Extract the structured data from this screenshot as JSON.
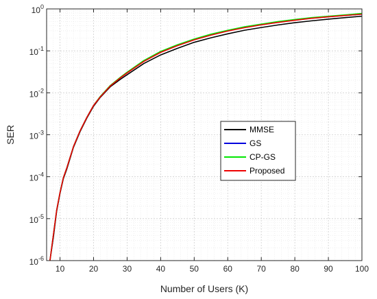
{
  "chart_data": {
    "type": "line",
    "xlabel": "Number of Users (K)",
    "ylabel": "SER",
    "xlim": [
      6,
      100
    ],
    "ylim": [
      1e-06,
      1
    ],
    "yscale": "log",
    "grid": true,
    "legend_position": "center-right",
    "x_ticks": [
      "10",
      "20",
      "30",
      "40",
      "50",
      "60",
      "70",
      "80",
      "90",
      "100"
    ],
    "y_ticks": [
      {
        "base": "10",
        "exp": "0"
      },
      {
        "base": "10",
        "exp": "-1"
      },
      {
        "base": "10",
        "exp": "-2"
      },
      {
        "base": "10",
        "exp": "-3"
      },
      {
        "base": "10",
        "exp": "-4"
      },
      {
        "base": "10",
        "exp": "-5"
      },
      {
        "base": "10",
        "exp": "-6"
      }
    ],
    "series": [
      {
        "name": "MMSE",
        "color": "#000000",
        "x": [
          7,
          8,
          9,
          10,
          11,
          12,
          14,
          16,
          18,
          20,
          22,
          25,
          28,
          30,
          35,
          40,
          45,
          50,
          55,
          60,
          65,
          70,
          75,
          80,
          85,
          90,
          95,
          100
        ],
        "y": [
          1e-06,
          3.5e-06,
          1.5e-05,
          4e-05,
          9e-05,
          0.00015,
          0.0005,
          0.0012,
          0.0025,
          0.0048,
          0.0078,
          0.014,
          0.021,
          0.027,
          0.05,
          0.08,
          0.115,
          0.16,
          0.205,
          0.255,
          0.31,
          0.36,
          0.415,
          0.47,
          0.52,
          0.57,
          0.62,
          0.67
        ]
      },
      {
        "name": "GS",
        "color": "#0000dd",
        "x": [
          7,
          8,
          9,
          10,
          11,
          12,
          14,
          16,
          18,
          20,
          22,
          25,
          28,
          30,
          35,
          40,
          45,
          50,
          55,
          60,
          65,
          70,
          75,
          80,
          85,
          90,
          95,
          100
        ],
        "y": [
          1e-06,
          4e-06,
          1.6e-05,
          4.2e-05,
          9.5e-05,
          0.00016,
          0.00052,
          0.00125,
          0.0026,
          0.005,
          0.0081,
          0.0148,
          0.023,
          0.03,
          0.057,
          0.093,
          0.135,
          0.185,
          0.24,
          0.3,
          0.36,
          0.42,
          0.48,
          0.54,
          0.6,
          0.65,
          0.7,
          0.75
        ]
      },
      {
        "name": "CP-GS",
        "color": "#00e600",
        "x": [
          7,
          8,
          9,
          10,
          11,
          12,
          14,
          16,
          18,
          20,
          22,
          25,
          28,
          30,
          35,
          40,
          45,
          50,
          55,
          60,
          65,
          70,
          75,
          80,
          85,
          90,
          95,
          100
        ],
        "y": [
          1e-06,
          4e-06,
          1.6e-05,
          4.2e-05,
          9.5e-05,
          0.00016,
          0.00052,
          0.00125,
          0.0026,
          0.005,
          0.0082,
          0.015,
          0.0235,
          0.031,
          0.059,
          0.097,
          0.14,
          0.192,
          0.25,
          0.31,
          0.375,
          0.435,
          0.5,
          0.56,
          0.62,
          0.67,
          0.72,
          0.78
        ]
      },
      {
        "name": "Proposed",
        "color": "#ee0000",
        "x": [
          7,
          8,
          9,
          10,
          11,
          12,
          14,
          16,
          18,
          20,
          22,
          25,
          28,
          30,
          35,
          40,
          45,
          50,
          55,
          60,
          65,
          70,
          75,
          80,
          85,
          90,
          95,
          100
        ],
        "y": [
          1e-06,
          4e-06,
          1.6e-05,
          4.2e-05,
          9.5e-05,
          0.00016,
          0.00052,
          0.00125,
          0.0026,
          0.005,
          0.008,
          0.0146,
          0.0228,
          0.0298,
          0.056,
          0.092,
          0.133,
          0.183,
          0.237,
          0.297,
          0.357,
          0.417,
          0.477,
          0.537,
          0.597,
          0.647,
          0.697,
          0.747
        ]
      }
    ]
  }
}
